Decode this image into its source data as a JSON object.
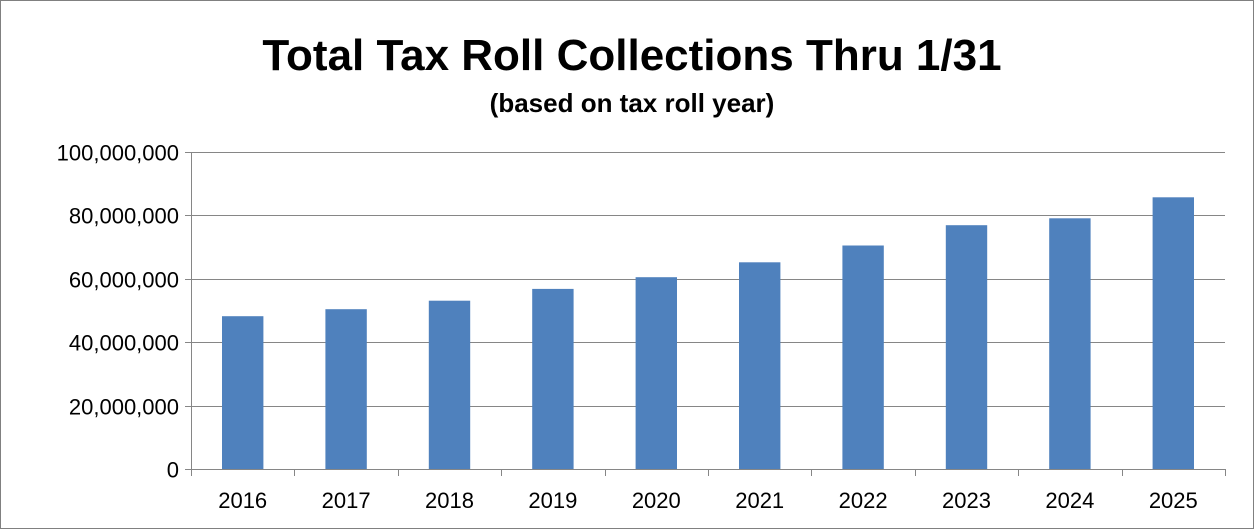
{
  "chart_data": {
    "type": "bar",
    "title": "Total Tax Roll Collections Thru 1/31",
    "subtitle": "(based on tax roll year)",
    "xlabel": "",
    "ylabel": "",
    "categories": [
      "2016",
      "2017",
      "2018",
      "2019",
      "2020",
      "2021",
      "2022",
      "2023",
      "2024",
      "2025"
    ],
    "values": [
      48200000,
      50400000,
      53100000,
      56800000,
      60500000,
      65200000,
      70500000,
      76900000,
      79100000,
      85700000
    ],
    "ylim": [
      0,
      100000000
    ],
    "yticks": [
      0,
      20000000,
      40000000,
      60000000,
      80000000,
      100000000
    ],
    "ytick_labels": [
      "0",
      "20,000,000",
      "40,000,000",
      "60,000,000",
      "80,000,000",
      "100,000,000"
    ],
    "grid": true,
    "legend": "none",
    "bar_color": "#4f81bd",
    "grid_color": "#868686"
  }
}
